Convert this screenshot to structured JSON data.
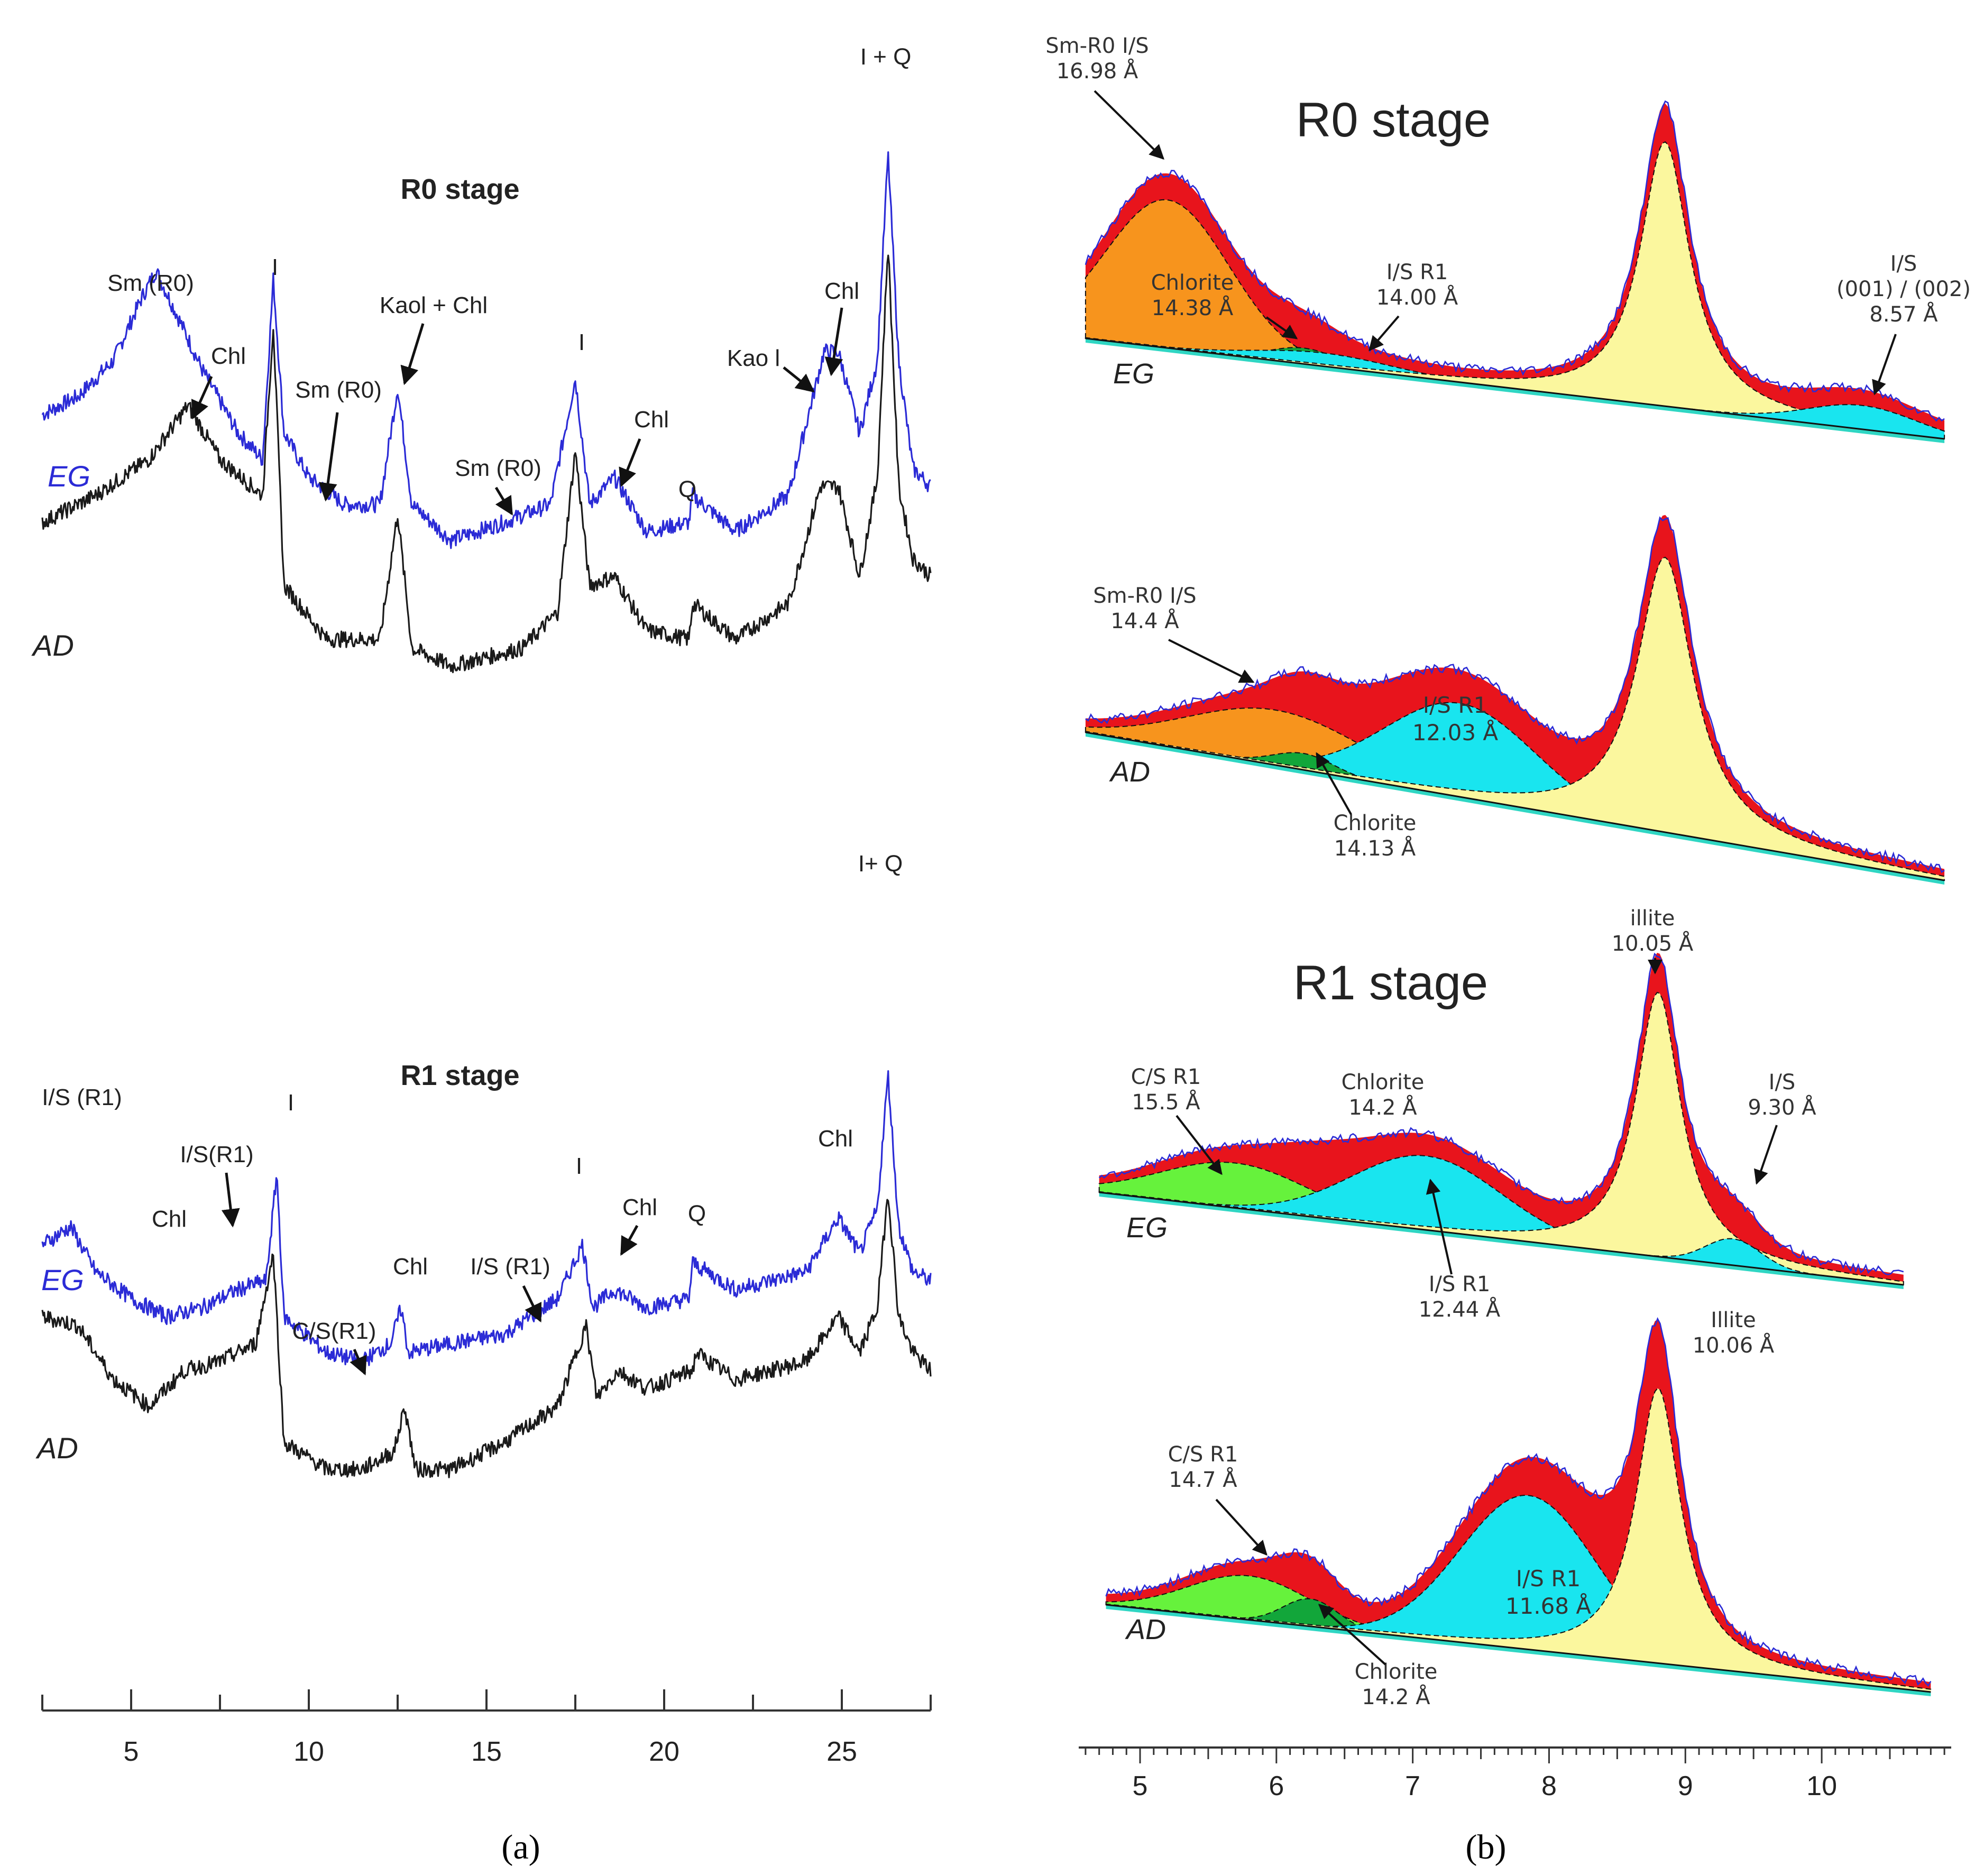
{
  "colors": {
    "eg": "#2b2bd6",
    "ad": "#1a1a1a",
    "residual": "#e8141c",
    "smectite": "#f7941d",
    "is": "#19e5ef",
    "chlorite": "#12a63a",
    "cs": "#66f23c",
    "illite": "#fbf79e",
    "background_fill": "#2fd6c3"
  },
  "chart_data": [
    {
      "id": "a",
      "type": "line",
      "caption": "(a)",
      "xlabel": "",
      "x_ticks": [
        "5",
        "10",
        "15",
        "20",
        "25"
      ],
      "xlim": [
        2.5,
        27.5
      ],
      "panels": [
        {
          "title": "R0 stage",
          "series": [
            {
              "name": "EG",
              "points": [
                [
                  2.5,
                  3.8
                ],
                [
                  3.5,
                  4.0
                ],
                [
                  4.5,
                  4.4
                ],
                [
                  5.3,
                  5.1
                ],
                [
                  5.7,
                  5.4
                ],
                [
                  6.3,
                  4.9
                ],
                [
                  7.0,
                  4.3
                ],
                [
                  8.0,
                  3.6
                ],
                [
                  8.7,
                  3.3
                ],
                [
                  9.0,
                  5.3
                ],
                [
                  9.3,
                  3.6
                ],
                [
                  10.0,
                  3.1
                ],
                [
                  11.0,
                  2.8
                ],
                [
                  12.0,
                  2.8
                ],
                [
                  12.5,
                  4.1
                ],
                [
                  12.9,
                  2.8
                ],
                [
                  14.0,
                  2.4
                ],
                [
                  15.5,
                  2.6
                ],
                [
                  16.8,
                  2.8
                ],
                [
                  17.5,
                  4.2
                ],
                [
                  17.9,
                  2.8
                ],
                [
                  18.6,
                  3.1
                ],
                [
                  19.5,
                  2.5
                ],
                [
                  20.7,
                  2.6
                ],
                [
                  20.8,
                  2.9
                ],
                [
                  22.0,
                  2.5
                ],
                [
                  23.5,
                  2.9
                ],
                [
                  24.5,
                  4.5
                ],
                [
                  24.9,
                  4.5
                ],
                [
                  25.5,
                  3.6
                ],
                [
                  26.0,
                  4.4
                ],
                [
                  26.3,
                  6.7
                ],
                [
                  26.6,
                  4.4
                ],
                [
                  27.0,
                  3.2
                ],
                [
                  27.5,
                  3.0
                ]
              ]
            },
            {
              "name": "AD",
              "points": [
                [
                  2.5,
                  2.6
                ],
                [
                  4.0,
                  2.9
                ],
                [
                  5.5,
                  3.3
                ],
                [
                  6.6,
                  3.9
                ],
                [
                  7.5,
                  3.3
                ],
                [
                  8.7,
                  2.9
                ],
                [
                  9.0,
                  4.8
                ],
                [
                  9.3,
                  1.9
                ],
                [
                  10.5,
                  1.3
                ],
                [
                  12.0,
                  1.3
                ],
                [
                  12.5,
                  2.7
                ],
                [
                  12.9,
                  1.2
                ],
                [
                  14.0,
                  1.0
                ],
                [
                  16.0,
                  1.2
                ],
                [
                  17.0,
                  1.6
                ],
                [
                  17.5,
                  3.4
                ],
                [
                  17.9,
                  1.9
                ],
                [
                  18.6,
                  2.0
                ],
                [
                  19.5,
                  1.4
                ],
                [
                  20.7,
                  1.3
                ],
                [
                  20.8,
                  1.7
                ],
                [
                  22.0,
                  1.3
                ],
                [
                  23.5,
                  1.7
                ],
                [
                  24.4,
                  3.0
                ],
                [
                  24.9,
                  3.0
                ],
                [
                  25.5,
                  2.0
                ],
                [
                  26.0,
                  3.1
                ],
                [
                  26.3,
                  5.7
                ],
                [
                  26.6,
                  3.0
                ],
                [
                  27.0,
                  2.2
                ],
                [
                  27.5,
                  2.0
                ]
              ]
            }
          ],
          "annotations": [
            "Sm (R0)",
            "Chl",
            "I",
            "Sm (R0)",
            "Kaol + Chl",
            "Sm (R0)",
            "I",
            "Chl",
            "Q",
            "Kao l",
            "Chl",
            "I + Q"
          ]
        },
        {
          "title": "R1 stage",
          "series": [
            {
              "name": "EG",
              "points": [
                [
                  2.5,
                  3.8
                ],
                [
                  3.3,
                  4.0
                ],
                [
                  4.0,
                  3.5
                ],
                [
                  5.0,
                  3.2
                ],
                [
                  6.0,
                  3.0
                ],
                [
                  7.0,
                  3.1
                ],
                [
                  8.0,
                  3.3
                ],
                [
                  8.8,
                  3.4
                ],
                [
                  9.1,
                  4.6
                ],
                [
                  9.3,
                  3.0
                ],
                [
                  10.5,
                  2.6
                ],
                [
                  11.5,
                  2.5
                ],
                [
                  12.3,
                  2.7
                ],
                [
                  12.6,
                  3.1
                ],
                [
                  12.8,
                  2.6
                ],
                [
                  14.0,
                  2.7
                ],
                [
                  15.5,
                  2.8
                ],
                [
                  17.0,
                  3.2
                ],
                [
                  17.7,
                  3.8
                ],
                [
                  18.0,
                  3.1
                ],
                [
                  18.6,
                  3.3
                ],
                [
                  19.5,
                  3.1
                ],
                [
                  20.7,
                  3.2
                ],
                [
                  20.8,
                  3.6
                ],
                [
                  22.0,
                  3.3
                ],
                [
                  24.0,
                  3.5
                ],
                [
                  24.9,
                  4.1
                ],
                [
                  25.5,
                  3.7
                ],
                [
                  26.0,
                  4.2
                ],
                [
                  26.3,
                  5.7
                ],
                [
                  26.6,
                  4.0
                ],
                [
                  27.0,
                  3.5
                ],
                [
                  27.5,
                  3.4
                ]
              ]
            },
            {
              "name": "AD",
              "points": [
                [
                  2.5,
                  3.0
                ],
                [
                  3.5,
                  2.9
                ],
                [
                  4.5,
                  2.3
                ],
                [
                  5.5,
                  2.0
                ],
                [
                  6.5,
                  2.4
                ],
                [
                  7.5,
                  2.5
                ],
                [
                  8.5,
                  2.7
                ],
                [
                  9.0,
                  3.7
                ],
                [
                  9.3,
                  1.6
                ],
                [
                  10.5,
                  1.3
                ],
                [
                  11.5,
                  1.3
                ],
                [
                  12.4,
                  1.5
                ],
                [
                  12.7,
                  2.0
                ],
                [
                  13.0,
                  1.3
                ],
                [
                  14.0,
                  1.3
                ],
                [
                  15.5,
                  1.6
                ],
                [
                  17.0,
                  2.0
                ],
                [
                  17.8,
                  2.9
                ],
                [
                  18.1,
                  2.1
                ],
                [
                  18.7,
                  2.4
                ],
                [
                  19.5,
                  2.2
                ],
                [
                  20.8,
                  2.4
                ],
                [
                  20.9,
                  2.6
                ],
                [
                  22.0,
                  2.3
                ],
                [
                  24.0,
                  2.5
                ],
                [
                  24.9,
                  3.0
                ],
                [
                  25.5,
                  2.6
                ],
                [
                  26.0,
                  3.1
                ],
                [
                  26.3,
                  4.4
                ],
                [
                  26.6,
                  3.0
                ],
                [
                  27.0,
                  2.6
                ],
                [
                  27.5,
                  2.4
                ]
              ]
            }
          ],
          "annotations": [
            "I/S (R1)",
            "Chl",
            "I/S(R1)",
            "I",
            "C/S(R1)",
            "Chl",
            "I/S (R1)",
            "I",
            "Chl",
            "Q",
            "Chl",
            "I+ Q"
          ]
        }
      ]
    },
    {
      "id": "b",
      "type": "area",
      "caption": "(b)",
      "xlabel": "",
      "x_ticks": [
        "5",
        "6",
        "7",
        "8",
        "9",
        "10"
      ],
      "xlim": [
        4.55,
        10.95
      ],
      "panels": [
        {
          "title": "R0 stage",
          "subtitle": "EG",
          "components": [
            {
              "name": "Smectite R0 I/S",
              "center": 5.2,
              "height": 5.6,
              "width": 0.45,
              "color_key": "smectite"
            },
            {
              "name": "Chlorite",
              "center": 6.2,
              "height": 0.6,
              "width": 0.25,
              "color_key": "chlorite"
            },
            {
              "name": "I/S R1",
              "center": 6.35,
              "height": 0.5,
              "width": 0.5,
              "color_key": "is"
            },
            {
              "name": "Illite",
              "center": 8.85,
              "height": 10.0,
              "width": 0.22,
              "color_key": "illite"
            },
            {
              "name": "I/S",
              "center": 10.3,
              "height": 0.9,
              "width": 0.4,
              "color_key": "is"
            }
          ],
          "annotations": [
            "Sm-R0 I/S",
            "16.98 Å",
            "Chlorite",
            "14.38 Å",
            "I/S R1",
            "14.00 Å",
            "I/S",
            "(001) / (002)",
            "8.57 Å"
          ]
        },
        {
          "title": "",
          "subtitle": "AD",
          "components": [
            {
              "name": "Smectite R0 I/S",
              "center": 6.0,
              "height": 2.0,
              "width": 0.65,
              "color_key": "smectite"
            },
            {
              "name": "I/S R1",
              "center": 7.35,
              "height": 3.4,
              "width": 0.55,
              "color_key": "is"
            },
            {
              "name": "Chlorite",
              "center": 6.2,
              "height": 0.6,
              "width": 0.22,
              "color_key": "chlorite"
            },
            {
              "name": "Illite",
              "center": 8.85,
              "height": 10.0,
              "width": 0.25,
              "color_key": "illite"
            }
          ],
          "annotations": [
            "Sm-R0 I/S",
            "14.4 Å",
            "I/S R1",
            "12.03 Å",
            "Chlorite",
            "14.13 Å"
          ]
        },
        {
          "title": "R1 stage",
          "subtitle": "EG",
          "components": [
            {
              "name": "C/S R1",
              "center": 5.7,
              "height": 1.7,
              "width": 0.55,
              "color_key": "cs"
            },
            {
              "name": "Chlorite",
              "center": 6.3,
              "height": 0.4,
              "width": 0.3,
              "color_key": "chlorite"
            },
            {
              "name": "I/S R1",
              "center": 7.1,
              "height": 2.8,
              "width": 0.55,
              "color_key": "is"
            },
            {
              "name": "Illite",
              "center": 8.8,
              "height": 10.0,
              "width": 0.2,
              "color_key": "illite"
            },
            {
              "name": "I/S",
              "center": 9.35,
              "height": 1.0,
              "width": 0.2,
              "color_key": "is"
            }
          ],
          "annotations": [
            "illite",
            "10.05 Å",
            "C/S R1",
            "15.5 Å",
            "Chlorite",
            "14.2 Å",
            "I/S",
            "9.30 Å",
            "I/S R1",
            "12.44 Å"
          ]
        },
        {
          "title": "",
          "subtitle": "AD",
          "components": [
            {
              "name": "C/S R1",
              "center": 5.8,
              "height": 1.6,
              "width": 0.45,
              "color_key": "cs"
            },
            {
              "name": "Chlorite",
              "center": 6.25,
              "height": 1.0,
              "width": 0.2,
              "color_key": "chlorite"
            },
            {
              "name": "I/S R1",
              "center": 7.85,
              "height": 5.6,
              "width": 0.5,
              "color_key": "is"
            },
            {
              "name": "Illite",
              "center": 8.8,
              "height": 10.0,
              "width": 0.2,
              "color_key": "illite"
            }
          ],
          "annotations": [
            "Illite",
            "10.06 Å",
            "C/S R1",
            "14.7 Å",
            "I/S R1",
            "11.68 Å",
            "Chlorite",
            "14.2 Å"
          ]
        }
      ]
    }
  ]
}
